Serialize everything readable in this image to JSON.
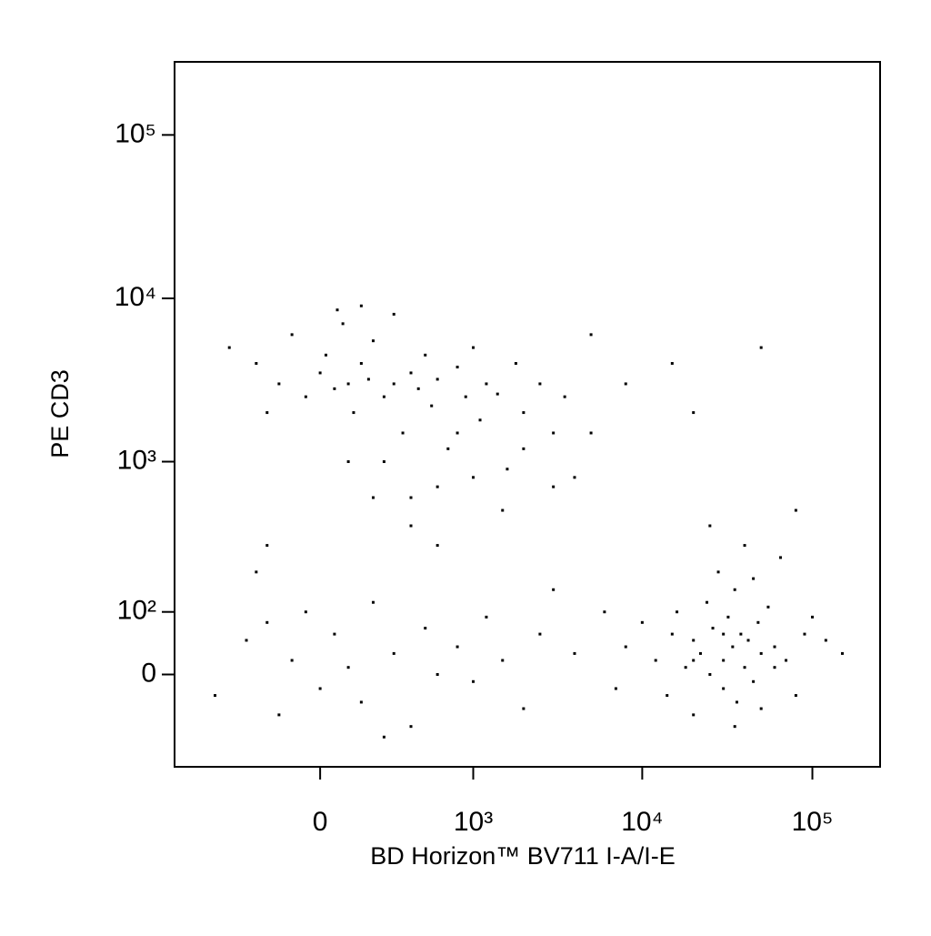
{
  "chart_data": {
    "type": "scatter",
    "x_label": "BD Horizon™ BV711 I-A/I-E",
    "y_label": "PE CD3",
    "xscale": "biexponential",
    "yscale": "biexponential",
    "xlim": [
      -900,
      250000
    ],
    "ylim": [
      -170,
      280000
    ],
    "xticks": [
      0,
      {
        "value": 1000,
        "label": "10³"
      },
      {
        "value": 10000,
        "label": "10⁴"
      },
      {
        "value": 100000,
        "label": "10⁵"
      }
    ],
    "yticks": [
      0,
      {
        "value": 100,
        "label": "10²"
      },
      {
        "value": 1000,
        "label": "10³"
      },
      {
        "value": 10000,
        "label": "10⁴"
      },
      {
        "value": 100000,
        "label": "10⁵"
      }
    ],
    "series": [
      {
        "color": "#000000",
        "x": [
          -400,
          -250,
          -150,
          -100,
          -50,
          0,
          20,
          50,
          80,
          100,
          120,
          150,
          180,
          200,
          250,
          300,
          300,
          350,
          400,
          450,
          500,
          550,
          600,
          700,
          800,
          900,
          1000,
          1100,
          1200,
          1400,
          1600,
          1800,
          2000,
          2500,
          3000,
          3500,
          4000,
          5000,
          150,
          250,
          400,
          600,
          800,
          60,
          -200,
          8000,
          10000,
          12000,
          14000,
          15000,
          16000,
          18000,
          20000,
          20000,
          22000,
          24000,
          25000,
          26000,
          28000,
          30000,
          30000,
          32000,
          34000,
          35000,
          36000,
          38000,
          40000,
          40000,
          42000,
          45000,
          48000,
          50000,
          50000,
          55000,
          60000,
          65000,
          70000,
          80000,
          90000,
          100000,
          120000,
          150000,
          6000,
          7000,
          25000,
          35000,
          45000,
          30000,
          20000,
          60000,
          -500,
          -300,
          -200,
          -150,
          -100,
          -50,
          0,
          50,
          100,
          150,
          200,
          300,
          400,
          500,
          600,
          800,
          1000,
          1200,
          1500,
          2000,
          2500,
          3000,
          4000,
          -250,
          250,
          200,
          400,
          600,
          1000,
          1500,
          2000,
          3000,
          5000,
          8000,
          15000,
          20000,
          50000,
          80000,
          -200,
          100
        ],
        "y": [
          5000,
          4000,
          3000,
          6000,
          2500,
          3500,
          4500,
          2800,
          7000,
          3000,
          2000,
          4000,
          3200,
          5500,
          2500,
          3000,
          8000,
          1500,
          3500,
          2800,
          4500,
          2200,
          3200,
          1200,
          3800,
          2500,
          5000,
          1800,
          3000,
          2600,
          900,
          4000,
          2000,
          3000,
          1500,
          2500,
          800,
          6000,
          9000,
          1000,
          600,
          700,
          1500,
          8500,
          2000,
          40,
          80,
          20,
          -30,
          60,
          100,
          10,
          50,
          -60,
          30,
          120,
          0,
          70,
          200,
          20,
          -20,
          90,
          40,
          150,
          -40,
          60,
          10,
          300,
          50,
          -10,
          80,
          30,
          -50,
          110,
          40,
          250,
          20,
          -30,
          60,
          90,
          50,
          30,
          100,
          -20,
          400,
          -80,
          180,
          60,
          20,
          10,
          -30,
          50,
          80,
          -60,
          20,
          100,
          -20,
          60,
          10,
          -40,
          120,
          30,
          -80,
          70,
          0,
          40,
          -10,
          90,
          20,
          -50,
          60,
          150,
          30,
          200,
          -100,
          600,
          400,
          300,
          800,
          500,
          1200,
          700,
          1500,
          3000,
          4000,
          2000,
          5000,
          500,
          300,
          1000
        ]
      }
    ]
  }
}
